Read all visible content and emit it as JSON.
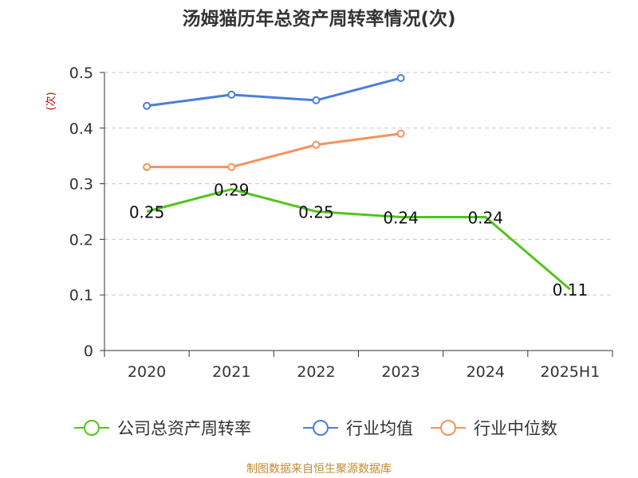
{
  "title": "汤姆猫历年总资产周转率情况(次)",
  "source": "制图数据来自恒生聚源数据库",
  "chart_data": {
    "type": "line",
    "title": "汤姆猫历年总资产周转率情况(次)",
    "ylabel": "(次)",
    "ylim": [
      0,
      0.5
    ],
    "yticks": [
      0,
      0.1,
      0.2,
      0.3,
      0.4,
      0.5
    ],
    "ytick_labels": [
      "0",
      "0.1",
      "0.2",
      "0.3",
      "0.4",
      "0.5"
    ],
    "categories": [
      "2020",
      "2021",
      "2022",
      "2023",
      "2024",
      "2025H1"
    ],
    "grid": true,
    "legend_position": "bottom",
    "series": [
      {
        "name": "公司总资产周转率",
        "color": "#52c41a",
        "values": [
          0.25,
          0.29,
          0.25,
          0.24,
          0.24,
          0.11
        ],
        "labels": [
          "0.25",
          "0.29",
          "0.25",
          "0.24",
          "0.24",
          "0.11"
        ],
        "markers": false
      },
      {
        "name": "行业均值",
        "color": "#4a7fd6",
        "values": [
          0.44,
          0.46,
          0.45,
          0.49,
          null,
          null
        ],
        "markers": true
      },
      {
        "name": "行业中位数",
        "color": "#f4935a",
        "values": [
          0.33,
          0.33,
          0.37,
          0.39,
          null,
          null
        ],
        "markers": true
      }
    ]
  }
}
